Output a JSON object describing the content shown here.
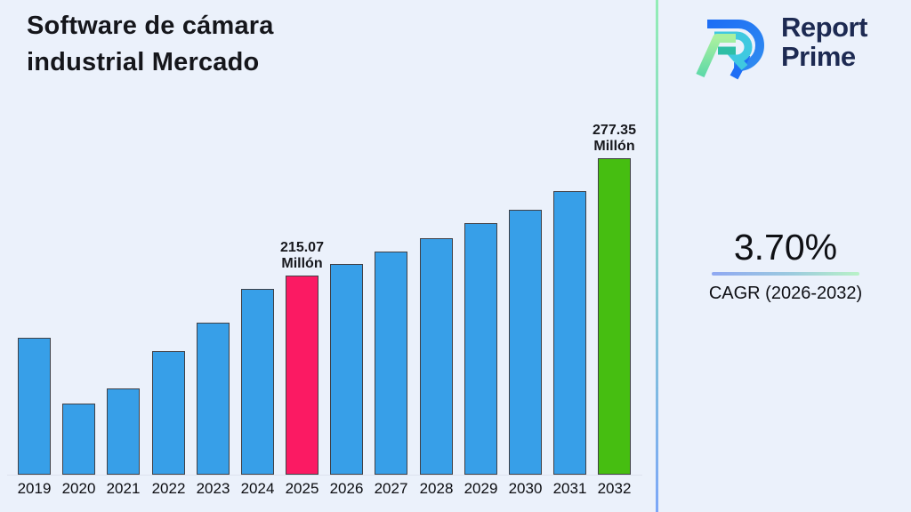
{
  "header": {
    "title_line1": "Software de cámara",
    "title_line2": "industrial Mercado"
  },
  "brand": {
    "word1": "Report",
    "word2": "Prime"
  },
  "cagr_panel": {
    "value": "3.70%",
    "label": "CAGR (2026-2032)"
  },
  "colors": {
    "background": "#EBF1FB",
    "bar_default": "#379FE8",
    "bar_highlight_2025": "#FB1A63",
    "bar_highlight_2032": "#46BE11",
    "bar_border": "#404046",
    "brand_navy": "#1D2A52",
    "divider_gradient_top": "#93EDB6",
    "divider_gradient_bottom": "#7DA7F8"
  },
  "chart_data": {
    "type": "bar",
    "title": "Software de cámara industrial Mercado",
    "unit": "Millón",
    "categories": [
      "2019",
      "2020",
      "2021",
      "2022",
      "2023",
      "2024",
      "2025",
      "2026",
      "2027",
      "2028",
      "2029",
      "2030",
      "2031",
      "2032"
    ],
    "values": [
      182,
      147,
      155,
      175,
      190,
      208,
      215.07,
      221,
      228,
      235,
      243,
      250,
      260,
      277.35
    ],
    "labeled_points": [
      {
        "category": "2025",
        "value": 215.07,
        "value_label": "215.07",
        "unit_label": "Millón",
        "color": "#FB1A63"
      },
      {
        "category": "2032",
        "value": 277.35,
        "value_label": "277.35",
        "unit_label": "Millón",
        "color": "#46BE11"
      }
    ],
    "bar_colors": {
      "default": "#379FE8",
      "2025": "#FB1A63",
      "2032": "#46BE11"
    },
    "xlabel": "",
    "ylabel": "",
    "grid": false,
    "legend": false
  }
}
